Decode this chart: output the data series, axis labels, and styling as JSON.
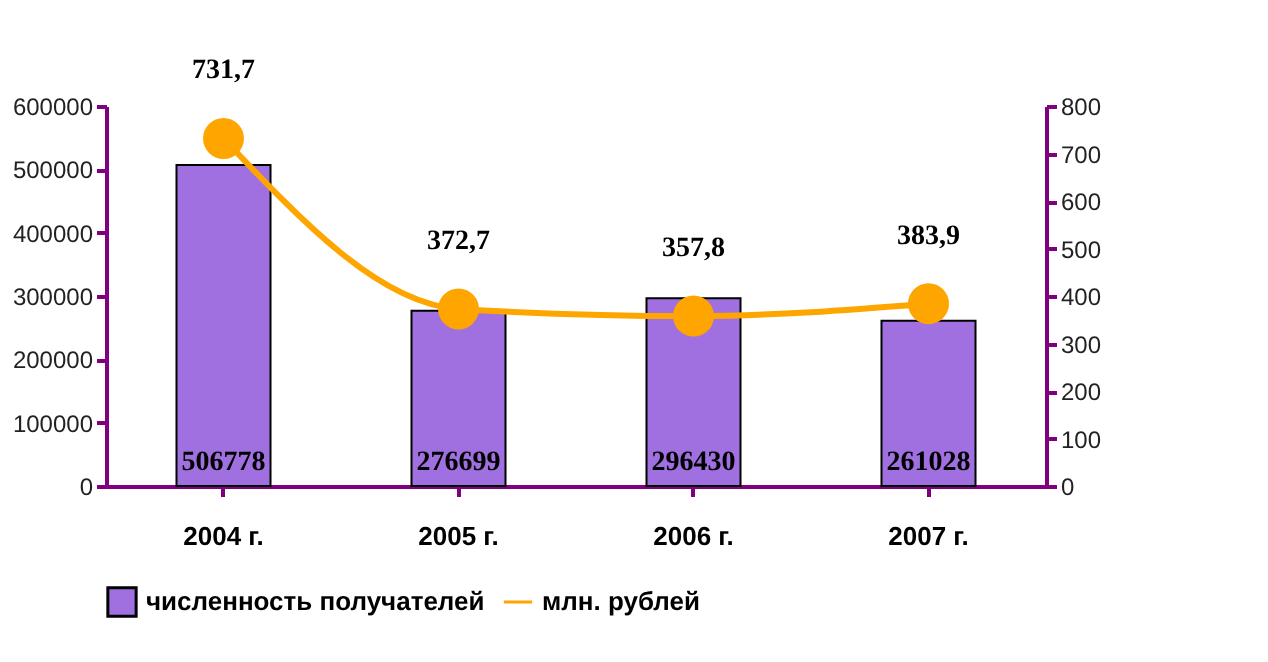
{
  "chart_data": {
    "type": "bar",
    "categories": [
      "2004 г.",
      "2005 г.",
      "2006 г.",
      "2007 г."
    ],
    "series": [
      {
        "name": "численность получателей",
        "color": "#a070e0",
        "values": [
          506778,
          276699,
          296430,
          261028
        ],
        "value_labels": [
          "506778",
          "276699",
          "296430",
          "261028"
        ]
      },
      {
        "name": "млн. рублей",
        "type": "line",
        "axis": "y2",
        "color": "#ffa500",
        "values": [
          731.7,
          372.7,
          357.8,
          383.9
        ],
        "value_labels": [
          "731,7",
          "372,7",
          "357,8",
          "383,9"
        ],
        "marker": "circle"
      }
    ],
    "ylim": [
      0,
      600000
    ],
    "yticks": [
      0,
      100000,
      200000,
      300000,
      400000,
      500000,
      600000
    ],
    "y2lim": [
      0,
      800
    ],
    "y2ticks": [
      0,
      100,
      200,
      300,
      400,
      500,
      600,
      700,
      800
    ],
    "grid": false,
    "legend": "bottom"
  }
}
